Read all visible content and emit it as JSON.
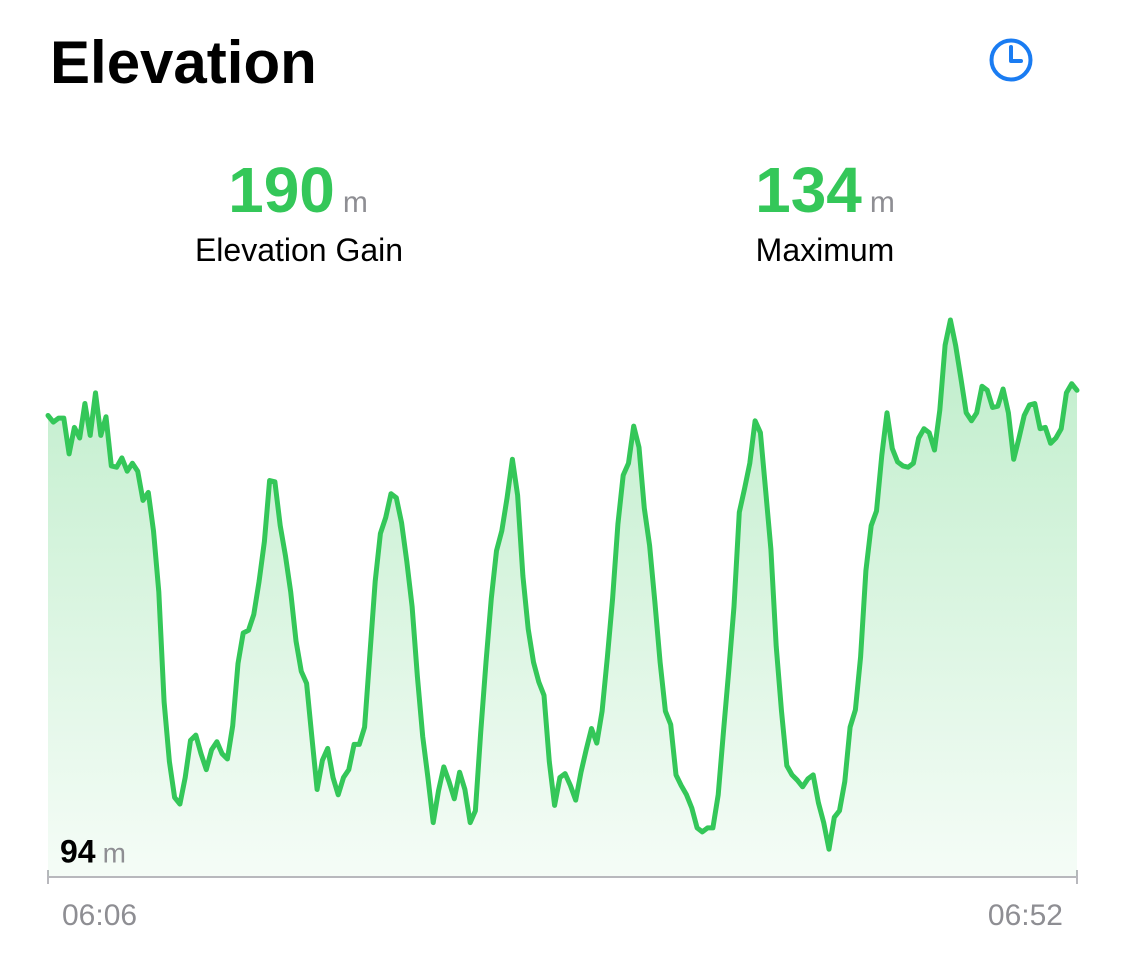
{
  "header": {
    "title": "Elevation"
  },
  "stats": [
    {
      "value": 190,
      "unit": "m",
      "label": "Elevation Gain"
    },
    {
      "value": 134,
      "unit": "m",
      "label": "Maximum"
    }
  ],
  "chart_data": {
    "type": "area",
    "color": "#34c759",
    "unit": "m",
    "ylim": [
      92,
      134
    ],
    "yticks": [
      94
    ],
    "xtick_labels": [
      "06:06",
      "06:52"
    ],
    "values": [
      126.8,
      126.3,
      126.6,
      126.6,
      123.9,
      125.9,
      125.1,
      127.7,
      125.3,
      128.5,
      125.3,
      126.7,
      123.0,
      122.9,
      123.6,
      122.6,
      123.2,
      122.6,
      120.4,
      121.0,
      118.1,
      113.5,
      105.2,
      100.7,
      98.0,
      97.5,
      99.5,
      102.3,
      102.7,
      101.3,
      100.1,
      101.6,
      102.2,
      101.3,
      100.9,
      103.4,
      108.1,
      110.4,
      110.6,
      111.8,
      114.3,
      117.3,
      121.9,
      121.8,
      118.5,
      116.2,
      113.5,
      109.8,
      107.5,
      106.6,
      102.6,
      98.6,
      100.8,
      101.7,
      99.5,
      98.2,
      99.5,
      100.1,
      102.0,
      102.0,
      103.3,
      108.8,
      114.3,
      117.9,
      119.1,
      120.9,
      120.6,
      118.7,
      115.8,
      112.4,
      107.1,
      102.6,
      99.5,
      96.1,
      98.5,
      100.3,
      99.2,
      97.9,
      99.9,
      98.6,
      96.1,
      97.0,
      102.9,
      108.2,
      113.0,
      116.6,
      118.1,
      120.6,
      123.5,
      120.8,
      114.7,
      110.7,
      108.2,
      106.7,
      105.7,
      100.7,
      97.4,
      99.5,
      99.8,
      98.9,
      97.8,
      99.9,
      101.6,
      103.2,
      102.1,
      104.5,
      108.6,
      113.0,
      118.6,
      122.3,
      123.2,
      126.0,
      124.4,
      119.8,
      117.0,
      112.8,
      108.2,
      104.5,
      103.5,
      99.7,
      98.9,
      98.2,
      97.2,
      95.7,
      95.4,
      95.7,
      95.7,
      98.2,
      102.9,
      107.5,
      112.4,
      119.5,
      121.3,
      123.2,
      126.4,
      125.5,
      121.1,
      116.7,
      109.4,
      104.5,
      100.4,
      99.7,
      99.3,
      98.8,
      99.4,
      99.7,
      97.6,
      96.1,
      94.1,
      96.5,
      97.0,
      99.2,
      103.3,
      104.6,
      108.6,
      115.1,
      118.5,
      119.6,
      123.8,
      127.0,
      124.3,
      123.3,
      123.0,
      122.9,
      123.2,
      125.1,
      125.8,
      125.5,
      124.2,
      127.2,
      132.1,
      134,
      132.1,
      129.6,
      127.0,
      126.4,
      127.0,
      129.0,
      128.7,
      127.4,
      127.5,
      128.8,
      127.0,
      123.5,
      125.1,
      126.8,
      127.6,
      127.7,
      125.8,
      125.9,
      124.7,
      125.1,
      125.8,
      128.5,
      129.2,
      128.7
    ]
  }
}
